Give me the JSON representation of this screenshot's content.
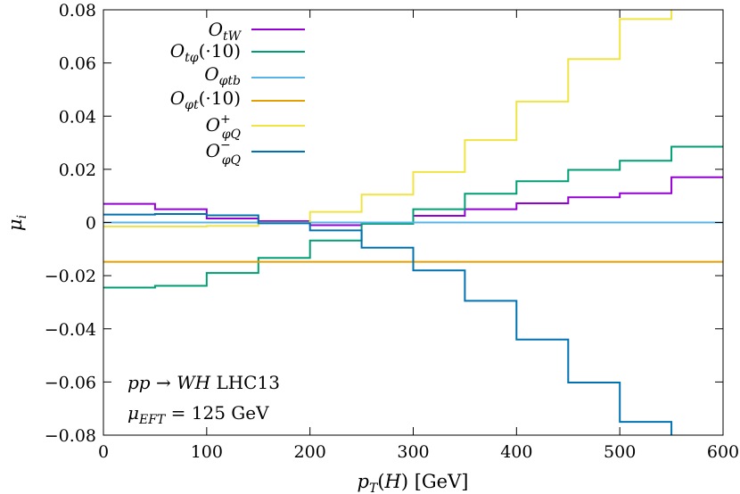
{
  "chart_data": {
    "type": "line",
    "step": true,
    "xlabel": "p_T(H) [GeV]",
    "ylabel": "μ_i",
    "xlim": [
      0,
      600
    ],
    "ylim": [
      -0.08,
      0.08
    ],
    "x_ticks": [
      0,
      100,
      200,
      300,
      400,
      500,
      600
    ],
    "x_tick_labels": [
      "0",
      "100",
      "200",
      "300",
      "400",
      "500",
      "600"
    ],
    "y_ticks": [
      0.08,
      0.06,
      0.04,
      0.02,
      0,
      -0.02,
      -0.04,
      -0.06,
      -0.08
    ],
    "y_tick_labels": [
      "0.08",
      "0.06",
      "0.04",
      "0.02",
      "0",
      "−0.02",
      "−0.04",
      "−0.06",
      "−0.08"
    ],
    "grid": false,
    "legend_position": "top-left",
    "bin_edges": [
      0,
      50,
      100,
      150,
      200,
      250,
      300,
      350,
      400,
      450,
      500,
      550,
      600
    ],
    "series": [
      {
        "name": "O_tW",
        "color": "#9400d3",
        "values": [
          0.007,
          0.005,
          0.0015,
          0.0005,
          -0.001,
          -0.0005,
          0.0025,
          0.005,
          0.0072,
          0.0095,
          0.011,
          0.017
        ]
      },
      {
        "name": "O_tφ(·10)",
        "color": "#009e73",
        "values": [
          -0.0245,
          -0.0238,
          -0.019,
          -0.0133,
          -0.0068,
          -0.0005,
          0.005,
          0.0108,
          0.0155,
          0.0198,
          0.0232,
          0.0285
        ]
      },
      {
        "name": "O_φtb",
        "color": "#56b4e9",
        "values": [
          0.0,
          0.0,
          0.0,
          0.0,
          0.0,
          0.0,
          0.0,
          0.0,
          0.0,
          0.0,
          0.0,
          0.0
        ]
      },
      {
        "name": "O_φt(·10)",
        "color": "#e69f00",
        "values": [
          -0.0148,
          -0.0148,
          -0.0148,
          -0.0148,
          -0.0148,
          -0.0148,
          -0.0148,
          -0.0148,
          -0.0148,
          -0.0148,
          -0.0148,
          -0.0148
        ]
      },
      {
        "name": "O_φQ^+",
        "color": "#f0e442",
        "values": [
          -0.0015,
          -0.0015,
          -0.0013,
          -0.0002,
          0.004,
          0.0105,
          0.019,
          0.031,
          0.0455,
          0.0615,
          0.0765,
          0.09
        ]
      },
      {
        "name": "O_φQ^−",
        "color": "#0072b2",
        "values": [
          0.003,
          0.0032,
          0.0027,
          -0.0003,
          -0.003,
          -0.0095,
          -0.018,
          -0.0295,
          -0.044,
          -0.0602,
          -0.075,
          -0.09
        ]
      }
    ],
    "annotations": [
      "pp → WH LHC13",
      "μ_EFT = 125 GeV"
    ]
  }
}
